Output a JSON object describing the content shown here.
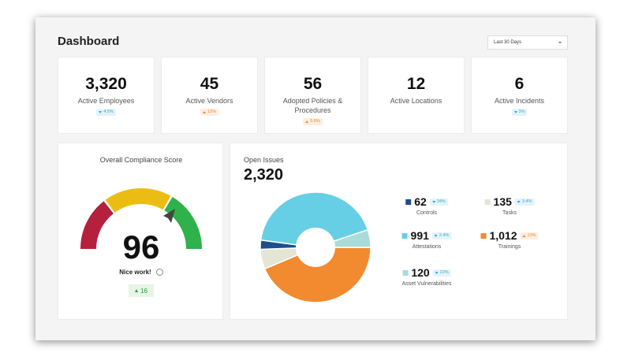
{
  "header": {
    "title": "Dashboard",
    "date_range": "Last 30 Days"
  },
  "kpis": [
    {
      "value": "3,320",
      "label": "Active Employees",
      "change": "4.5%",
      "direction": "down"
    },
    {
      "value": "45",
      "label": "Active Vendors",
      "change": "12%",
      "direction": "up"
    },
    {
      "value": "56",
      "label": "Adopted Policies & Procedures",
      "change": "5.6%",
      "direction": "up"
    },
    {
      "value": "12",
      "label": "Active Locations",
      "change": null,
      "direction": null
    },
    {
      "value": "6",
      "label": "Active Incidents",
      "change": "3%",
      "direction": "down"
    }
  ],
  "compliance": {
    "title": "Overall Compliance Score",
    "score": 96,
    "message": "Nice work!",
    "change": "16"
  },
  "open_issues": {
    "title": "Open Issues",
    "total": "2,320",
    "items": [
      {
        "label": "Trainings",
        "value": 1012,
        "value_label": "1,012",
        "color": "#f28a30",
        "change": "13%",
        "direction": "up"
      },
      {
        "label": "Tasks",
        "value": 135,
        "color": "#e4e5d3",
        "change": "3.4%",
        "direction": "down"
      },
      {
        "label": "Controls",
        "value": 62,
        "color": "#1f4e8c",
        "change": "34%",
        "direction": "down"
      },
      {
        "label": "Attestations",
        "value": 991,
        "color": "#66cfe6",
        "change": "2.4%",
        "direction": "down"
      },
      {
        "label": "Asset Vulnerabilities",
        "value": 120,
        "color": "#a9dcd9",
        "change": "22%",
        "direction": "down"
      }
    ]
  }
}
